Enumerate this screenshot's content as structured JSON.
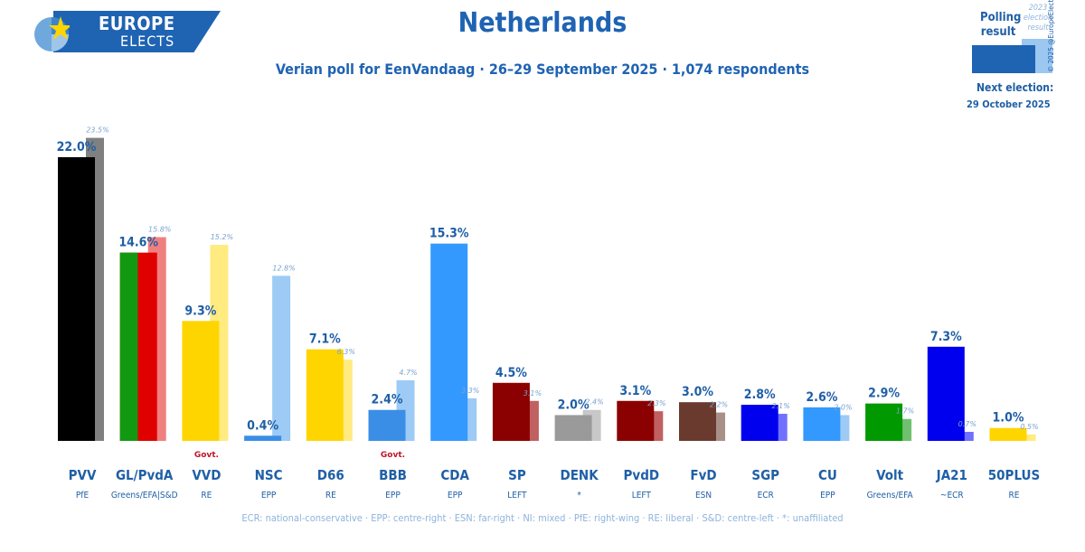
{
  "logo": {
    "line1": "EUROPE",
    "line2": "ELECTS"
  },
  "title": "Netherlands",
  "subtitle": "Verian poll for EenVandaag · 26–29 September 2025 · 1,074 respondents",
  "legend": {
    "polling": "Polling result",
    "previous": "2023 election result",
    "copyright": "© 2025 @EuropeElects",
    "next_election_label": "Next election:",
    "next_election_date": "29 October 2025"
  },
  "footnote": "ECR: national-conservative · EPP: centre-right · ESN: far-right · NI: mixed · PfE: right-wing · RE: liberal · S&D: centre-left · *: unaffiliated",
  "chart_data": {
    "type": "bar",
    "ylim": [
      0,
      25
    ],
    "categories": [
      "PVV",
      "GL/PvdA",
      "VVD",
      "NSC",
      "D66",
      "BBB",
      "CDA",
      "SP",
      "DENK",
      "PvdD",
      "FvD",
      "SGP",
      "CU",
      "Volt",
      "JA21",
      "50PLUS"
    ],
    "groups": [
      "PfE",
      "Greens/EFA|S&D",
      "RE",
      "EPP",
      "RE",
      "EPP",
      "EPP",
      "LEFT",
      "*",
      "LEFT",
      "ESN",
      "ECR",
      "EPP",
      "Greens/EFA",
      "~ECR",
      "RE"
    ],
    "government": [
      false,
      false,
      true,
      false,
      false,
      true,
      false,
      false,
      false,
      false,
      false,
      false,
      false,
      false,
      false,
      false
    ],
    "govt_label": "Govt.",
    "series": [
      {
        "name": "Polling result",
        "values": [
          22.0,
          14.6,
          9.3,
          0.4,
          7.1,
          2.4,
          15.3,
          4.5,
          2.0,
          3.1,
          3.0,
          2.8,
          2.6,
          2.9,
          7.3,
          1.0
        ],
        "labels": [
          "22.0%",
          "14.6%",
          "9.3%",
          "0.4%",
          "7.1%",
          "2.4%",
          "15.3%",
          "4.5%",
          "2.0%",
          "3.1%",
          "3.0%",
          "2.8%",
          "2.6%",
          "2.9%",
          "7.3%",
          "1.0%"
        ]
      },
      {
        "name": "2023 election result",
        "values": [
          23.5,
          15.8,
          15.2,
          12.8,
          6.3,
          4.7,
          3.3,
          3.1,
          2.4,
          2.3,
          2.2,
          2.1,
          2.0,
          1.7,
          0.7,
          0.5
        ],
        "labels": [
          "23.5%",
          "15.8%",
          "15.2%",
          "12.8%",
          "6.3%",
          "4.7%",
          "3.3%",
          "3.1%",
          "2.4%",
          "2.3%",
          "2.2%",
          "2.1%",
          "2.0%",
          "1.7%",
          "0.7%",
          "0.5%"
        ]
      }
    ],
    "colors": [
      "#000000",
      "#e00000",
      "#ffd500",
      "#3a8ee6",
      "#ffd500",
      "#3a8ee6",
      "#3399ff",
      "#8b0000",
      "#9a9a9a",
      "#8b0000",
      "#6b3a2e",
      "#0000ee",
      "#3399ff",
      "#009900",
      "#0000ee",
      "#ffd500"
    ],
    "prev_colors": [
      "#808080",
      "#f08080",
      "#ffeb80",
      "#9dcbf6",
      "#ffeb80",
      "#9dcbf6",
      "#9dcbf6",
      "#c06060",
      "#c8c8c8",
      "#c06060",
      "#a89088",
      "#7070ff",
      "#9dcbf6",
      "#70c070",
      "#7070ff",
      "#ffeb80"
    ],
    "split_colors": {
      "GL/PvdA": "#119911"
    }
  }
}
